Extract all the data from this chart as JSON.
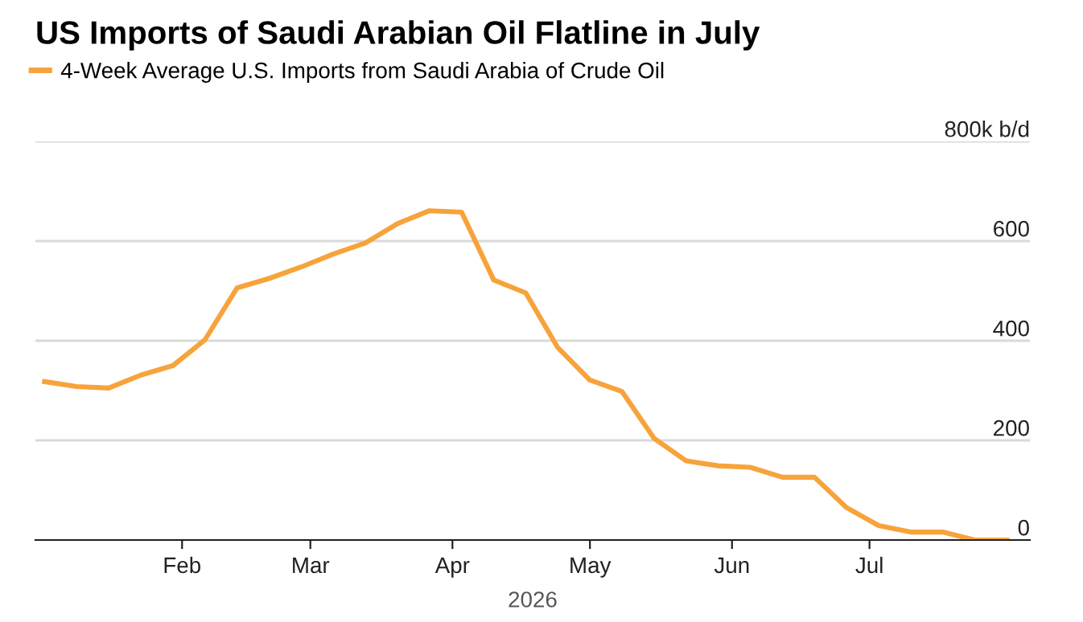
{
  "chart_data": {
    "type": "line",
    "title": "US Imports of Saudi Arabian Oil Flatline in July",
    "xlabel": "2026",
    "x": [
      "2026-01-02",
      "2026-01-09",
      "2026-01-16",
      "2026-01-23",
      "2026-01-30",
      "2026-02-06",
      "2026-02-13",
      "2026-02-20",
      "2026-02-27",
      "2026-03-06",
      "2026-03-13",
      "2026-03-20",
      "2026-03-27",
      "2026-04-03",
      "2026-04-10",
      "2026-04-17",
      "2026-04-24",
      "2026-05-01",
      "2026-05-08",
      "2026-05-15",
      "2026-05-22",
      "2026-05-29",
      "2026-06-05",
      "2026-06-12",
      "2026-06-19",
      "2026-06-26",
      "2026-07-03",
      "2026-07-10",
      "2026-07-17",
      "2026-07-24",
      "2026-07-31"
    ],
    "series": [
      {
        "name": "4-Week Average U.S. Imports from Saudi Arabia of Crude Oil",
        "color": "#f7a33b",
        "values": [
          318,
          308,
          305,
          331,
          350,
          402,
          506,
          525,
          548,
          574,
          596,
          635,
          661,
          658,
          522,
          496,
          386,
          321,
          298,
          204,
          159,
          149,
          146,
          126,
          126,
          65,
          29,
          16,
          16,
          0,
          0
        ]
      }
    ],
    "xlim": [
      "2025-12-31",
      "2026-08-05"
    ],
    "xticks": [
      {
        "value": "2026-02-01",
        "label": "Feb"
      },
      {
        "value": "2026-03-01",
        "label": "Mar"
      },
      {
        "value": "2026-04-01",
        "label": "Apr"
      },
      {
        "value": "2026-05-01",
        "label": "May"
      },
      {
        "value": "2026-06-01",
        "label": "Jun"
      },
      {
        "value": "2026-07-01",
        "label": "Jul"
      }
    ],
    "ylim": [
      0,
      800
    ],
    "yticks": [
      0,
      200,
      400,
      600,
      {
        "value": 800,
        "label": "800k b/d"
      }
    ],
    "grid": "y",
    "legend": "top left",
    "marker": "none",
    "line_style": "solid"
  }
}
